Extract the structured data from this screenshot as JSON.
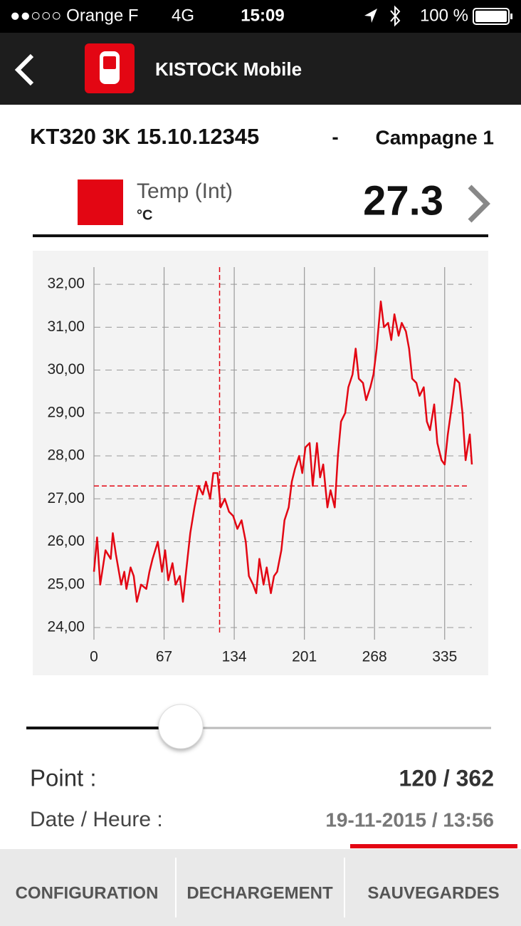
{
  "status_bar": {
    "carrier": "●●○○○ Orange F",
    "network": "4G",
    "time": "15:09",
    "battery": "100 %"
  },
  "header": {
    "title": "KISTOCK Mobile"
  },
  "device": {
    "name": "KT320 3K 15.10.12345",
    "separator": "-",
    "campaign": "Campagne 1"
  },
  "channel": {
    "current_value": "27.3"
  },
  "chart_data": {
    "type": "line",
    "y_unit": "°C",
    "x": [
      0,
      3,
      6,
      11,
      16,
      18,
      21,
      26,
      29,
      31,
      35,
      38,
      41,
      45,
      50,
      53,
      56,
      61,
      65,
      68,
      71,
      75,
      78,
      82,
      85,
      88,
      92,
      96,
      100,
      104,
      107,
      111,
      114,
      118,
      121,
      125,
      129,
      133,
      137,
      141,
      145,
      148,
      152,
      155,
      158,
      162,
      165,
      169,
      172,
      175,
      179,
      182,
      186,
      189,
      192,
      196,
      199,
      202,
      206,
      209,
      213,
      216,
      219,
      223,
      226,
      230,
      233,
      236,
      240,
      243,
      247,
      250,
      253,
      257,
      260,
      264,
      267,
      270,
      274,
      277,
      281,
      284,
      287,
      291,
      294,
      298,
      301,
      304,
      308,
      311,
      315,
      318,
      321,
      325,
      328,
      332,
      335,
      338,
      342,
      345,
      349,
      352,
      355,
      359,
      361
    ],
    "series": [
      {
        "name": "Temp (Int)",
        "color": "#e30613",
        "values": [
          25.3,
          26.1,
          25.0,
          25.8,
          25.6,
          26.2,
          25.7,
          25.0,
          25.3,
          24.9,
          25.4,
          25.2,
          24.6,
          25.0,
          24.9,
          25.3,
          25.6,
          26.0,
          25.3,
          25.8,
          25.1,
          25.5,
          25.0,
          25.2,
          24.6,
          25.3,
          26.2,
          26.8,
          27.3,
          27.1,
          27.4,
          27.0,
          27.6,
          27.6,
          26.8,
          27.0,
          26.7,
          26.6,
          26.3,
          26.5,
          26.0,
          25.2,
          25.0,
          24.8,
          25.6,
          25.0,
          25.4,
          24.8,
          25.2,
          25.3,
          25.8,
          26.5,
          26.8,
          27.4,
          27.7,
          28.0,
          27.6,
          28.2,
          28.3,
          27.3,
          28.3,
          27.5,
          27.8,
          26.8,
          27.2,
          26.8,
          28.0,
          28.8,
          29.0,
          29.6,
          29.9,
          30.5,
          29.8,
          29.7,
          29.3,
          29.6,
          29.9,
          30.5,
          31.6,
          31.0,
          31.1,
          30.7,
          31.3,
          30.8,
          31.1,
          30.9,
          30.5,
          29.8,
          29.7,
          29.4,
          29.6,
          28.8,
          28.6,
          29.2,
          28.3,
          27.9,
          27.8,
          28.5,
          29.2,
          29.8,
          29.7,
          29.0,
          27.9,
          28.5,
          27.8
        ]
      }
    ],
    "xlim": [
      0,
      361
    ],
    "ylim": [
      23.85,
      32.4
    ],
    "xticks": [
      0,
      67,
      134,
      201,
      268,
      335
    ],
    "yticks": [
      {
        "value": 24,
        "label": "24,00"
      },
      {
        "value": 25,
        "label": "25,00"
      },
      {
        "value": 26,
        "label": "26,00"
      },
      {
        "value": 27,
        "label": "27,00"
      },
      {
        "value": 28,
        "label": "28,00"
      },
      {
        "value": 29,
        "label": "29,00"
      },
      {
        "value": 30,
        "label": "30,00"
      },
      {
        "value": 31,
        "label": "31,00"
      },
      {
        "value": 32,
        "label": "32,00"
      }
    ],
    "grid": true,
    "cursor": {
      "x": 120,
      "y": 27.3
    }
  },
  "info": {
    "point_label": "Point :",
    "point_value": "120 / 362",
    "date_label": "Date / Heure :",
    "date_value": "19-11-2015 / 13:56"
  },
  "tabs": [
    "CONFIGURATION",
    "DECHARGEMENT",
    "SAUVEGARDES"
  ]
}
